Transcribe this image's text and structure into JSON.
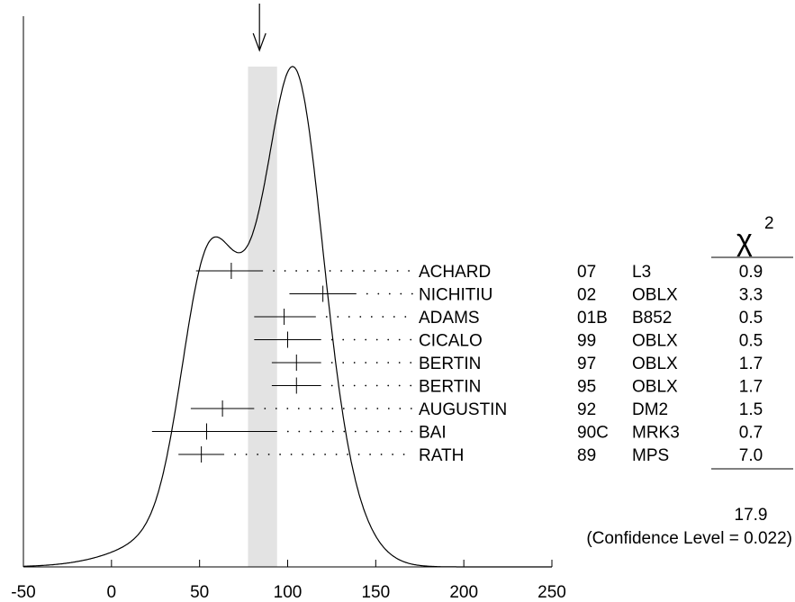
{
  "chart_data": {
    "type": "ideogram",
    "xlim": [
      -50,
      250
    ],
    "xticks": [
      -50,
      0,
      50,
      100,
      150,
      200,
      250
    ],
    "band": {
      "from": 77.5,
      "to": 94.0,
      "color": "#e3e3e3"
    },
    "arrow_at": 84,
    "chi2_header": "χ",
    "chi2_exponent": "2",
    "measurements": [
      {
        "author": "ACHARD",
        "year": "07",
        "tech": "L3",
        "chi2": "0.9",
        "value": 68,
        "lo": 48,
        "hi": 86
      },
      {
        "author": "NICHITIU",
        "year": "02",
        "tech": "OBLX",
        "chi2": "3.3",
        "value": 120,
        "lo": 101,
        "hi": 139
      },
      {
        "author": "ADAMS",
        "year": "01B",
        "tech": "B852",
        "chi2": "0.5",
        "value": 98,
        "lo": 81,
        "hi": 116
      },
      {
        "author": "CICALO",
        "year": "99",
        "tech": "OBLX",
        "chi2": "0.5",
        "value": 100,
        "lo": 81,
        "hi": 119
      },
      {
        "author": "BERTIN",
        "year": "97",
        "tech": "OBLX",
        "chi2": "1.7",
        "value": 105,
        "lo": 91,
        "hi": 119
      },
      {
        "author": "BERTIN",
        "year": "95",
        "tech": "OBLX",
        "chi2": "1.7",
        "value": 105,
        "lo": 91,
        "hi": 119
      },
      {
        "author": "AUGUSTIN",
        "year": "92",
        "tech": "DM2",
        "chi2": "1.5",
        "value": 63,
        "lo": 45,
        "hi": 81
      },
      {
        "author": "BAI",
        "year": "90C",
        "tech": "MRK3",
        "chi2": "0.7",
        "value": 54,
        "lo": 23,
        "hi": 94
      },
      {
        "author": "RATH",
        "year": "89",
        "tech": "MPS",
        "chi2": "7.0",
        "value": 51,
        "lo": 38,
        "hi": 64
      }
    ],
    "chi2_total": "17.9",
    "confidence_text": "(Confidence Level = 0.022)"
  }
}
